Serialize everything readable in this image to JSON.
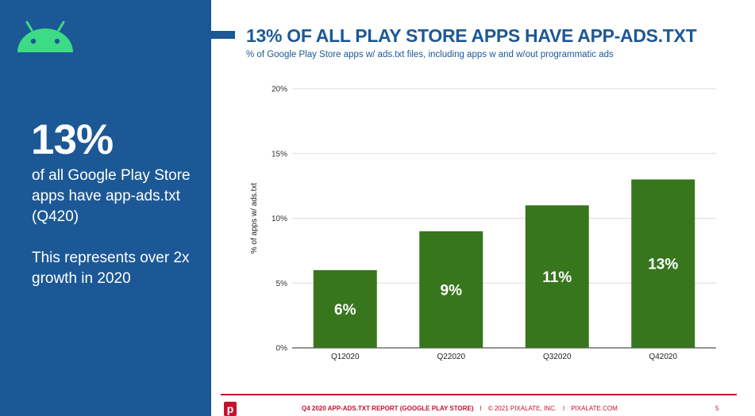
{
  "sidebar": {
    "big_stat": "13%",
    "description": "of all Google Play Store apps have app-ads.txt (Q420)",
    "note": "This represents over 2x growth in 2020",
    "icon": "android-icon"
  },
  "header": {
    "title": "13% OF ALL PLAY STORE APPS HAVE APP-ADS.TXT",
    "subtitle": "% of Google Play Store apps w/ ads.txt files, including apps w and w/out programmatic ads"
  },
  "colors": {
    "sidebar": "#1c5896",
    "bar": "#38761d",
    "accent": "#c8102e",
    "title": "#1c5896"
  },
  "chart_data": {
    "type": "bar",
    "categories": [
      "Q12020",
      "Q22020",
      "Q32020",
      "Q42020"
    ],
    "values": [
      6,
      9,
      11,
      13
    ],
    "data_labels": [
      "6%",
      "9%",
      "11%",
      "13%"
    ],
    "ylabel": "% of apps w/ ads.txt",
    "xlabel": "",
    "ylim": [
      0,
      20
    ],
    "yticks": [
      0,
      5,
      10,
      15,
      20
    ],
    "ytick_labels": [
      "0%",
      "5%",
      "10%",
      "15%",
      "20%"
    ],
    "grid": true
  },
  "footer": {
    "report": "Q4 2020 APP-ADS.TXT REPORT (GOOGLE PLAY STORE)",
    "copyright": "© 2021 PIXALATE, INC.",
    "site": "PIXALATE.COM",
    "page": "5",
    "separator": "I",
    "logo_letter": "p"
  }
}
